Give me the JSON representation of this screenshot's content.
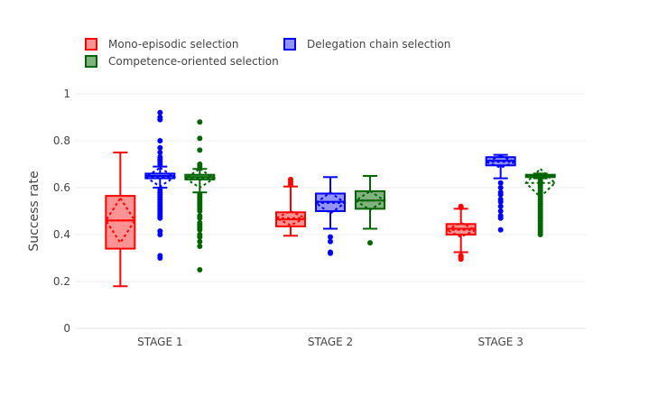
{
  "chart_data": {
    "type": "box",
    "title": "",
    "xlabel": "",
    "ylabel": "Success rate",
    "ylim": [
      0,
      1
    ],
    "yticks": [
      0,
      0.2,
      0.4,
      0.6,
      0.8,
      1
    ],
    "ytick_labels": [
      "0",
      "0.2",
      "0.4",
      "0.6",
      "0.8",
      "1"
    ],
    "categories": [
      "STAGE 1",
      "STAGE 2",
      "STAGE 3"
    ],
    "grid": true,
    "legend_position": "top-left",
    "boxmean": "sd",
    "series": [
      {
        "name": "Mono-episodic selection",
        "color": "#ff0000",
        "fill": "#ff8080",
        "boxes": [
          {
            "category": "STAGE 1",
            "min": 0.18,
            "q1": 0.34,
            "median": 0.46,
            "q3": 0.565,
            "max": 0.75,
            "mean": 0.46,
            "sd": 0.095,
            "outliers": []
          },
          {
            "category": "STAGE 2",
            "min": 0.395,
            "q1": 0.435,
            "median": 0.465,
            "q3": 0.495,
            "max": 0.605,
            "mean": 0.47,
            "sd": 0.03,
            "outliers": [
              0.615,
              0.625,
              0.635
            ]
          },
          {
            "category": "STAGE 3",
            "min": 0.325,
            "q1": 0.4,
            "median": 0.425,
            "q3": 0.445,
            "max": 0.51,
            "mean": 0.42,
            "sd": 0.03,
            "outliers": [
              0.295,
              0.3,
              0.305,
              0.31,
              0.515,
              0.52
            ]
          }
        ]
      },
      {
        "name": "Delegation chain selection",
        "color": "#0000ff",
        "fill": "#8080ff",
        "boxes": [
          {
            "category": "STAGE 1",
            "min": 0.6,
            "q1": 0.64,
            "median": 0.65,
            "q3": 0.66,
            "max": 0.69,
            "mean": 0.645,
            "sd": 0.04,
            "outliers": [
              0.3,
              0.31,
              0.4,
              0.415,
              0.47,
              0.48,
              0.49,
              0.5,
              0.51,
              0.52,
              0.53,
              0.54,
              0.55,
              0.56,
              0.57,
              0.58,
              0.59,
              0.7,
              0.71,
              0.72,
              0.73,
              0.75,
              0.77,
              0.8,
              0.89,
              0.9,
              0.92
            ]
          },
          {
            "category": "STAGE 2",
            "min": 0.425,
            "q1": 0.5,
            "median": 0.54,
            "q3": 0.575,
            "max": 0.645,
            "mean": 0.535,
            "sd": 0.045,
            "outliers": [
              0.32,
              0.325,
              0.37,
              0.39
            ]
          },
          {
            "category": "STAGE 3",
            "min": 0.64,
            "q1": 0.695,
            "median": 0.715,
            "q3": 0.73,
            "max": 0.74,
            "mean": 0.71,
            "sd": 0.025,
            "outliers": [
              0.42,
              0.47,
              0.48,
              0.5,
              0.52,
              0.54,
              0.55,
              0.57,
              0.58,
              0.6,
              0.62
            ]
          }
        ]
      },
      {
        "name": "Competence-oriented selection",
        "color": "#006400",
        "fill": "#6aa56a",
        "boxes": [
          {
            "category": "STAGE 1",
            "min": 0.58,
            "q1": 0.635,
            "median": 0.645,
            "q3": 0.655,
            "max": 0.68,
            "mean": 0.64,
            "sd": 0.04,
            "outliers": [
              0.25,
              0.35,
              0.37,
              0.39,
              0.4,
              0.42,
              0.43,
              0.44,
              0.45,
              0.47,
              0.48,
              0.5,
              0.51,
              0.52,
              0.53,
              0.54,
              0.55,
              0.56,
              0.57,
              0.69,
              0.7,
              0.76,
              0.81,
              0.88
            ]
          },
          {
            "category": "STAGE 2",
            "min": 0.425,
            "q1": 0.51,
            "median": 0.545,
            "q3": 0.585,
            "max": 0.65,
            "mean": 0.545,
            "sd": 0.04,
            "outliers": [
              0.365
            ]
          },
          {
            "category": "STAGE 3",
            "min": 0.64,
            "q1": 0.645,
            "median": 0.65,
            "q3": 0.655,
            "max": 0.66,
            "mean": 0.62,
            "sd": 0.06,
            "outliers": [
              0.4,
              0.41,
              0.42,
              0.43,
              0.44,
              0.45,
              0.46,
              0.47,
              0.48,
              0.49,
              0.5,
              0.51,
              0.52,
              0.53,
              0.54,
              0.55,
              0.56,
              0.57,
              0.58,
              0.59,
              0.6,
              0.61,
              0.62,
              0.63
            ]
          }
        ]
      }
    ]
  }
}
